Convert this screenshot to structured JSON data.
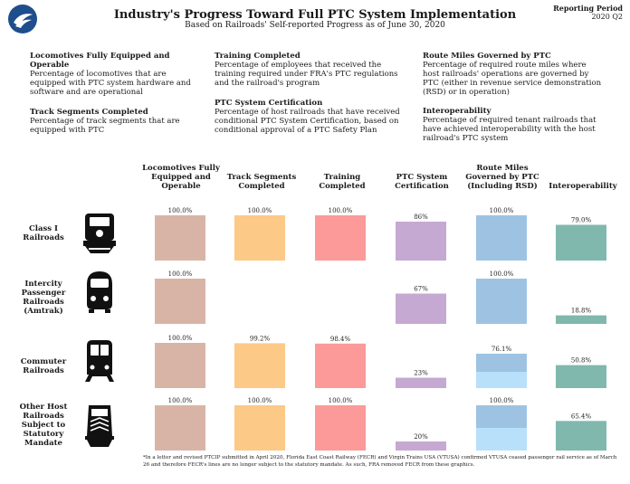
{
  "header": {
    "title": "Industry's Progress Toward Full PTC System Implementation",
    "subtitle": "Based on Railroads' Self-reported Progress as of June 30, 2020",
    "reporting_period_label": "Reporting Period",
    "reporting_period_value": "2020 Q2"
  },
  "logo": {
    "icon": "dot-logo-icon"
  },
  "definitions": [
    {
      "heading": "Locomotives Fully Equipped and Operable",
      "text": "Percentage of locomotives that are equipped with PTC system hardware and software and are operational"
    },
    {
      "heading": "Track Segments Completed",
      "text": "Percentage of track segments that are equipped with PTC"
    },
    {
      "heading": "Training Completed",
      "text": "Percentage of employees that received the training required under FRA's PTC regulations and the railroad's program"
    },
    {
      "heading": "PTC System Certification",
      "text": "Percentage of host railroads that have received conditional PTC System Certification, based on conditional approval of a PTC Safety Plan"
    },
    {
      "heading": "Route Miles Governed by PTC",
      "text": "Percentage of required route miles where host railroads' operations are governed by PTC (either in revenue service demonstration (RSD) or in operation)"
    },
    {
      "heading": "Interoperability",
      "text": "Percentage of required tenant railroads that have achieved interoperability with the host railroad's PTC system"
    }
  ],
  "chart_data": {
    "type": "bar",
    "title": "Industry's Progress Toward Full PTC System Implementation",
    "ylim": [
      0,
      100
    ],
    "columns": [
      {
        "name": "Locomotives Fully Equipped and Operable",
        "color": "#d8b4a6"
      },
      {
        "name": "Track Segments Completed",
        "color": "#fcc987"
      },
      {
        "name": "Training Completed",
        "color": "#fb9a99"
      },
      {
        "name": "PTC System Certification",
        "color": "#c5a9d2"
      },
      {
        "name": "Route Miles Governed by PTC (Including RSD)",
        "color": "#9ec3e2",
        "secondary_color": "#b8e0fa"
      },
      {
        "name": "Interoperability",
        "color": "#80b8ad"
      }
    ],
    "rows": [
      {
        "name": "Class I Railroads",
        "icon": "freight-locomotive-icon",
        "values": [
          100.0,
          100.0,
          100.0,
          86,
          100.0,
          79.0
        ],
        "labels": [
          "100.0%",
          "100.0%",
          "100.0%",
          "86%",
          "100.0%",
          "79.0%"
        ]
      },
      {
        "name": "Intercity Passenger Railroads (Amtrak)",
        "icon": "intercity-train-icon",
        "values": [
          100.0,
          null,
          null,
          67,
          100.0,
          18.8
        ],
        "labels": [
          "100.0%",
          "",
          "",
          "67%",
          "100.0%",
          "18.8%"
        ]
      },
      {
        "name": "Commuter Railroads",
        "icon": "commuter-train-icon",
        "values": [
          100.0,
          99.2,
          98.4,
          23,
          76.1,
          50.8
        ],
        "labels": [
          "100.0%",
          "99.2%",
          "98.4%",
          "23%",
          "76.1%",
          "50.8%"
        ]
      },
      {
        "name": "Other Host Railroads Subject to Statutory Mandate",
        "icon": "host-railroad-train-icon",
        "values": [
          100.0,
          100.0,
          100.0,
          20,
          100.0,
          65.4
        ],
        "labels": [
          "100.0%",
          "100.0%",
          "100.0%",
          "20%",
          "100.0%",
          "65.4%"
        ]
      }
    ],
    "route_miles_split_percent": [
      null,
      null,
      36,
      50
    ]
  },
  "column_headers": [
    "Locomotives Fully Equipped and Operable",
    "Track Segments Completed",
    "Training Completed",
    "PTC System Certification",
    "Route Miles Governed by PTC (Including RSD)",
    "Interoperability"
  ],
  "row_headers": [
    "Class I Railroads",
    "Intercity Passenger Railroads (Amtrak)",
    "Commuter Railroads",
    "Other Host Railroads Subject to Statutory Mandate"
  ],
  "footnote": "*In a letter and revised PTCIP submitted in April 2020, Florida East Coast Railway (FECR) and Virgin Trains USA (VTUSA) confirmed VTUSA ceased passenger rail service as of March 26 and therefore FECR's lines are no longer subject to the statutory mandate. As such, FRA removed FECR from these graphics."
}
